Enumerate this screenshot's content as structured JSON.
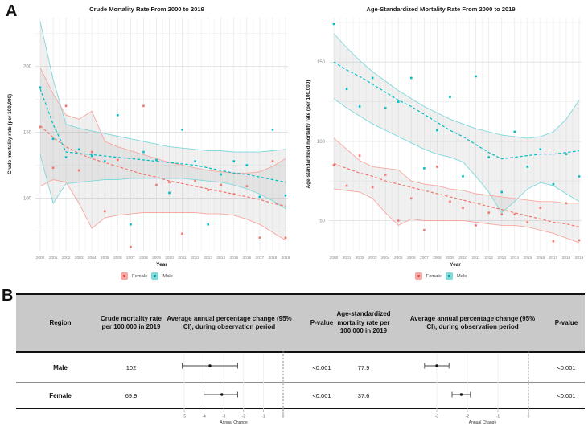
{
  "panels": {
    "a": "A",
    "b": "B"
  },
  "legend": {
    "female": "Female",
    "male": "Male"
  },
  "colors": {
    "female": "#f4756d",
    "female_light": "#f7a8a2",
    "male": "#00bfc4",
    "male_light": "#7fd8da",
    "band": "rgba(160,160,160,0.16)",
    "header_bg": "#c9c9c9",
    "divider": "#8f8f8f",
    "border": "#111111"
  },
  "chart_data": [
    {
      "type": "line",
      "title": "Crude Mortality Rate From 2000 to 2019",
      "xlabel": "Year",
      "ylabel": "Crude mortality rate (per 100,000)",
      "years": [
        2000,
        2001,
        2002,
        2003,
        2004,
        2005,
        2006,
        2007,
        2008,
        2009,
        2010,
        2011,
        2012,
        2013,
        2014,
        2015,
        2016,
        2017,
        2018,
        2019
      ],
      "yticks": [
        100,
        150,
        200
      ],
      "ylim": [
        60,
        237
      ],
      "legend_position": "bottom",
      "grid": true,
      "series": [
        {
          "name": "Female observed",
          "role": "points",
          "group": "female",
          "values": [
            154,
            123,
            170,
            121,
            135,
            90,
            129,
            63,
            170,
            110,
            112,
            73,
            113,
            106,
            110,
            103,
            109,
            70,
            128,
            69.9
          ]
        },
        {
          "name": "Male observed",
          "role": "points",
          "group": "male",
          "values": [
            184,
            145,
            131,
            137,
            132,
            128,
            163,
            80,
            135,
            129,
            104,
            152,
            128,
            80,
            118,
            128,
            125,
            101,
            152,
            102
          ]
        },
        {
          "name": "Female trend",
          "role": "trend",
          "group": "female",
          "values": [
            155,
            146,
            139,
            134,
            130,
            127,
            124,
            121,
            118,
            116,
            113,
            111,
            109,
            107,
            105,
            103,
            101,
            99,
            96,
            94
          ]
        },
        {
          "name": "Male trend",
          "role": "trend",
          "group": "male",
          "values": [
            183,
            156,
            135,
            134,
            133,
            132,
            131,
            130,
            129,
            128,
            127,
            126,
            125,
            123,
            121,
            119,
            118,
            116,
            114,
            112
          ]
        },
        {
          "name": "Female 95% CI upper",
          "role": "ci",
          "group": "female",
          "values": [
            199,
            179,
            163,
            160,
            166,
            143,
            139,
            136,
            133,
            130,
            127,
            125,
            123,
            121,
            120,
            119,
            119,
            120,
            124,
            130
          ]
        },
        {
          "name": "Female 95% CI lower",
          "role": "ci",
          "group": "female",
          "values": [
            109,
            114,
            112,
            96,
            77,
            85,
            87,
            88,
            89,
            89,
            89,
            89,
            89,
            88,
            88,
            87,
            84,
            80,
            74,
            68
          ]
        },
        {
          "name": "Male 95% CI upper",
          "role": "ci",
          "group": "male",
          "values": [
            234,
            190,
            156,
            153,
            151,
            149,
            147,
            145,
            143,
            141,
            139,
            138,
            137,
            136,
            136,
            135,
            135,
            135,
            136,
            137
          ]
        },
        {
          "name": "Male 95% CI lower",
          "role": "ci",
          "group": "male",
          "values": [
            133,
            96,
            111,
            112,
            113,
            114,
            114,
            115,
            115,
            115,
            115,
            115,
            114,
            113,
            112,
            110,
            107,
            103,
            98,
            92
          ]
        }
      ]
    },
    {
      "type": "line",
      "title": "Age-Standardized Mortality Rate From 2000 to 2019",
      "xlabel": "Year",
      "ylabel": "Age-standardized mortality rate (per 100,000)",
      "years": [
        2000,
        2001,
        2002,
        2003,
        2004,
        2005,
        2006,
        2007,
        2008,
        2009,
        2010,
        2011,
        2012,
        2013,
        2014,
        2015,
        2016,
        2017,
        2018,
        2019
      ],
      "yticks": [
        50,
        100,
        150
      ],
      "ylim": [
        31,
        178
      ],
      "legend_position": "bottom",
      "grid": true,
      "series": [
        {
          "name": "Female observed",
          "role": "points",
          "group": "female",
          "values": [
            85,
            72,
            91,
            71,
            79,
            50,
            64,
            44,
            84,
            62,
            58,
            47,
            55,
            54,
            54,
            49,
            58,
            37,
            61,
            37.6
          ]
        },
        {
          "name": "Male observed",
          "role": "points",
          "group": "male",
          "values": [
            174,
            133,
            122,
            140,
            121,
            125,
            140,
            83,
            107,
            128,
            78,
            141,
            90,
            68,
            106,
            84,
            95,
            73,
            92,
            77.9
          ]
        },
        {
          "name": "Female trend",
          "role": "trend",
          "group": "female",
          "values": [
            86,
            83,
            80,
            78,
            75,
            73,
            71,
            69,
            67,
            65,
            63,
            61,
            59,
            57,
            55,
            53,
            51,
            49,
            48,
            46
          ]
        },
        {
          "name": "Male trend",
          "role": "trend",
          "group": "male",
          "values": [
            150,
            145,
            141,
            136,
            131,
            126,
            122,
            117,
            112,
            107,
            103,
            98,
            93,
            89,
            90,
            91,
            92,
            92,
            93,
            94
          ]
        },
        {
          "name": "Female 95% CI upper",
          "role": "ci",
          "group": "female",
          "values": [
            102,
            95,
            88,
            84,
            83,
            82,
            75,
            73,
            72,
            70,
            69,
            67,
            66,
            65,
            64,
            63,
            62,
            62,
            61,
            61
          ]
        },
        {
          "name": "Female 95% CI lower",
          "role": "ci",
          "group": "female",
          "values": [
            70,
            69,
            68,
            64,
            55,
            47,
            51,
            50,
            50,
            50,
            50,
            49,
            48,
            47,
            47,
            46,
            44,
            42,
            39,
            36
          ]
        },
        {
          "name": "Male 95% CI upper",
          "role": "ci",
          "group": "male",
          "values": [
            168,
            159,
            151,
            144,
            138,
            132,
            127,
            122,
            118,
            114,
            111,
            108,
            106,
            104,
            103,
            102,
            103,
            106,
            114,
            126
          ]
        },
        {
          "name": "Male 95% CI lower",
          "role": "ci",
          "group": "male",
          "values": [
            127,
            121,
            116,
            111,
            107,
            103,
            99,
            95,
            92,
            90,
            87,
            78,
            68,
            55,
            62,
            70,
            74,
            72,
            67,
            62
          ]
        }
      ]
    },
    {
      "type": "table",
      "columns": [
        "Region",
        "Crude mortality rate per 100,000 in 2019",
        "Average annual percentage change (95% CI), during observation period",
        "P-value",
        "Age-standardized mortality rate per 100,000 in 2019",
        "Average annual percentage change (95% CI), during observation period",
        "P-value"
      ],
      "axis_label": "Annual Change",
      "forest_axes": [
        {
          "ticks": [
            -5,
            -4,
            -3,
            -2,
            -1,
            0
          ]
        },
        {
          "ticks": [
            -3,
            -2,
            -1,
            0
          ]
        }
      ],
      "rows": [
        {
          "region": "Male",
          "crude_rate": "102",
          "crude_apc_est": -3.7,
          "crude_apc_lo": -5.1,
          "crude_apc_hi": -2.3,
          "p_crude": "<0.001",
          "asr_rate": "77.9",
          "asr_apc_est": -3.0,
          "asr_apc_lo": -3.4,
          "asr_apc_hi": -2.6,
          "p_asr": "<0.001"
        },
        {
          "region": "Female",
          "crude_rate": "69.9",
          "crude_apc_est": -3.1,
          "crude_apc_lo": -4.0,
          "crude_apc_hi": -2.3,
          "p_crude": "<0.001",
          "asr_rate": "37.6",
          "asr_apc_est": -2.2,
          "asr_apc_lo": -2.5,
          "asr_apc_hi": -1.9,
          "p_asr": "<0.001"
        }
      ]
    }
  ]
}
